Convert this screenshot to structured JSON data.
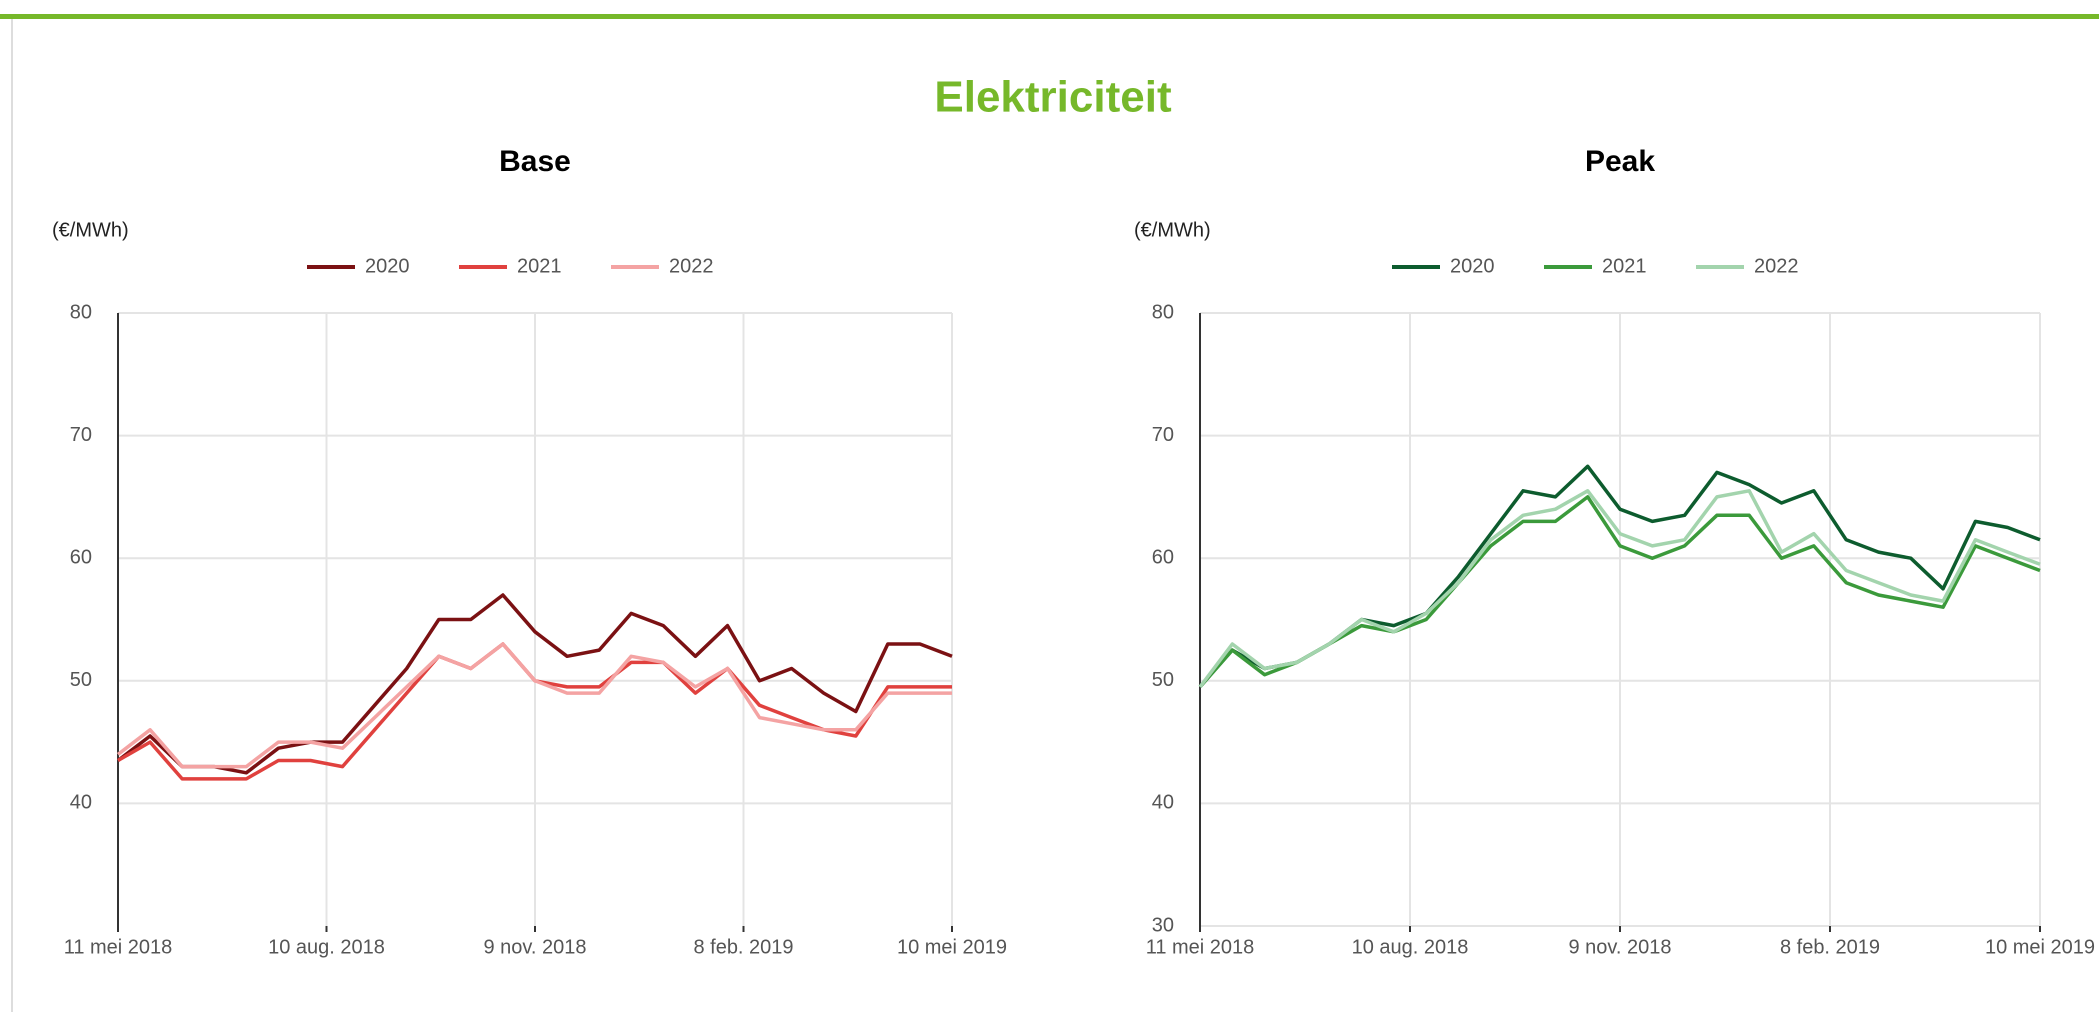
{
  "title": "Elektriciteit",
  "chart_data": [
    {
      "type": "line",
      "title": "Base",
      "y_label": "(€/MWh)",
      "x": [
        "2018-05-11",
        "2018-05-25",
        "2018-06-08",
        "2018-06-22",
        "2018-07-06",
        "2018-07-20",
        "2018-08-03",
        "2018-08-17",
        "2018-08-31",
        "2018-09-14",
        "2018-09-28",
        "2018-10-12",
        "2018-10-26",
        "2018-11-09",
        "2018-11-23",
        "2018-12-07",
        "2018-12-21",
        "2019-01-04",
        "2019-01-18",
        "2019-02-01",
        "2019-02-15",
        "2019-03-01",
        "2019-03-15",
        "2019-03-29",
        "2019-04-12",
        "2019-04-26",
        "2019-05-10"
      ],
      "xlim": [
        "2018-05-11",
        "2019-05-10"
      ],
      "xticks": [
        {
          "value": "2018-05-11",
          "label": "11 mei 2018"
        },
        {
          "value": "2018-08-10",
          "label": "10 aug. 2018"
        },
        {
          "value": "2018-11-09",
          "label": "9 nov. 2018"
        },
        {
          "value": "2019-02-08",
          "label": "8 feb. 2019"
        },
        {
          "value": "2019-05-10",
          "label": "10 mei 2019"
        }
      ],
      "ylim": [
        30,
        80
      ],
      "yticks": [
        40,
        50,
        60,
        70,
        80
      ],
      "grid": true,
      "series": [
        {
          "name": "2020",
          "color": "#7b1113",
          "values": [
            43.5,
            45.5,
            43,
            43,
            42.5,
            44.5,
            45,
            45,
            48,
            51,
            55,
            55,
            57,
            54,
            52,
            52.5,
            55.5,
            54.5,
            52,
            54.5,
            50,
            51,
            49,
            47.5,
            53,
            53,
            52
          ]
        },
        {
          "name": "2021",
          "color": "#e0413e",
          "values": [
            43.5,
            45,
            42,
            42,
            42,
            43.5,
            43.5,
            43,
            46,
            49,
            52,
            51,
            53,
            50,
            49.5,
            49.5,
            51.5,
            51.5,
            49,
            51,
            48,
            47,
            46,
            45.5,
            49.5,
            49.5,
            49.5
          ]
        },
        {
          "name": "2022",
          "color": "#f4a3a3",
          "values": [
            44,
            46,
            43,
            43,
            43,
            45,
            45,
            44.5,
            47,
            49.5,
            52,
            51,
            53,
            50,
            49,
            49,
            52,
            51.5,
            49.5,
            51,
            47,
            46.5,
            46,
            46,
            49,
            49,
            49
          ]
        }
      ]
    },
    {
      "type": "line",
      "title": "Peak",
      "y_label": "(€/MWh)",
      "x": [
        "2018-05-11",
        "2018-05-25",
        "2018-06-08",
        "2018-06-22",
        "2018-07-06",
        "2018-07-20",
        "2018-08-03",
        "2018-08-17",
        "2018-08-31",
        "2018-09-14",
        "2018-09-28",
        "2018-10-12",
        "2018-10-26",
        "2018-11-09",
        "2018-11-23",
        "2018-12-07",
        "2018-12-21",
        "2019-01-04",
        "2019-01-18",
        "2019-02-01",
        "2019-02-15",
        "2019-03-01",
        "2019-03-15",
        "2019-03-29",
        "2019-04-12",
        "2019-04-26",
        "2019-05-10"
      ],
      "xlim": [
        "2018-05-11",
        "2019-05-10"
      ],
      "xticks": [
        {
          "value": "2018-05-11",
          "label": "11 mei 2018"
        },
        {
          "value": "2018-08-10",
          "label": "10 aug. 2018"
        },
        {
          "value": "2018-11-09",
          "label": "9 nov. 2018"
        },
        {
          "value": "2019-02-08",
          "label": "8 feb. 2019"
        },
        {
          "value": "2019-05-10",
          "label": "10 mei 2019"
        }
      ],
      "ylim": [
        30,
        80
      ],
      "yticks": [
        30,
        40,
        50,
        60,
        70,
        80
      ],
      "grid": true,
      "series": [
        {
          "name": "2020",
          "color": "#0d5c2e",
          "values": [
            49.5,
            52.5,
            51,
            51.5,
            53,
            55,
            54.5,
            55.5,
            58.5,
            62,
            65.5,
            65,
            67.5,
            64,
            63,
            63.5,
            67,
            66,
            64.5,
            65.5,
            61.5,
            60.5,
            60,
            57.5,
            63,
            62.5,
            61.5
          ]
        },
        {
          "name": "2021",
          "color": "#3b9a3b",
          "values": [
            49.5,
            52.5,
            50.5,
            51.5,
            53,
            54.5,
            54,
            55,
            58,
            61,
            63,
            63,
            65,
            61,
            60,
            61,
            63.5,
            63.5,
            60,
            61,
            58,
            57,
            56.5,
            56,
            61,
            60,
            59
          ]
        },
        {
          "name": "2022",
          "color": "#a3d4ad",
          "values": [
            49.5,
            53,
            51,
            51.5,
            53,
            55,
            54,
            55.5,
            58,
            61.5,
            63.5,
            64,
            65.5,
            62,
            61,
            61.5,
            65,
            65.5,
            60.5,
            62,
            59,
            58,
            57,
            56.5,
            61.5,
            60.5,
            59.5
          ]
        }
      ]
    }
  ]
}
